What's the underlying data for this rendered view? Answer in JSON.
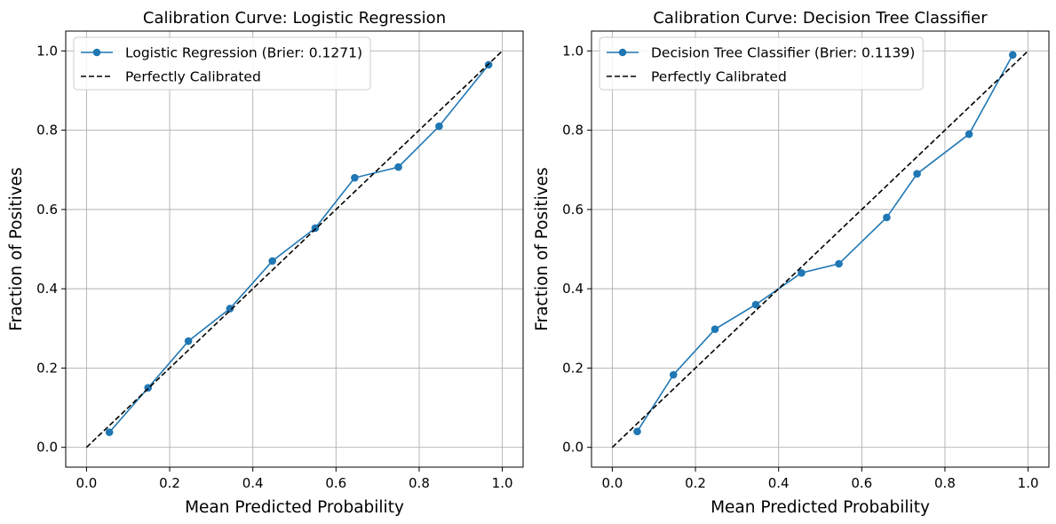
{
  "chart_data": [
    {
      "type": "line",
      "title": "Calibration Curve: Logistic Regression",
      "xlabel": "Mean Predicted Probability",
      "ylabel": "Fraction of Positives",
      "xlim": [
        -0.05,
        1.05
      ],
      "ylim": [
        -0.05,
        1.05
      ],
      "xticks": [
        "0.0",
        "0.2",
        "0.4",
        "0.6",
        "0.8",
        "1.0"
      ],
      "yticks": [
        "0.0",
        "0.2",
        "0.4",
        "0.6",
        "0.8",
        "1.0"
      ],
      "grid": true,
      "legend_position": "top-left",
      "series": [
        {
          "name": "Logistic Regression (Brier: 0.1271)",
          "color": "#1f77b4",
          "style": "solid-with-markers",
          "x": [
            0.055,
            0.148,
            0.245,
            0.345,
            0.447,
            0.55,
            0.645,
            0.75,
            0.848,
            0.967
          ],
          "y": [
            0.038,
            0.15,
            0.268,
            0.35,
            0.47,
            0.553,
            0.68,
            0.707,
            0.81,
            0.965
          ]
        },
        {
          "name": "Perfectly Calibrated",
          "color": "#000000",
          "style": "dashed",
          "x": [
            0,
            1
          ],
          "y": [
            0,
            1
          ]
        }
      ]
    },
    {
      "type": "line",
      "title": "Calibration Curve: Decision Tree Classifier",
      "xlabel": "Mean Predicted Probability",
      "ylabel": "Fraction of Positives",
      "xlim": [
        -0.05,
        1.05
      ],
      "ylim": [
        -0.05,
        1.05
      ],
      "xticks": [
        "0.0",
        "0.2",
        "0.4",
        "0.6",
        "0.8",
        "1.0"
      ],
      "yticks": [
        "0.0",
        "0.2",
        "0.4",
        "0.6",
        "0.8",
        "1.0"
      ],
      "grid": true,
      "legend_position": "top-left",
      "series": [
        {
          "name": "Decision Tree Classifier (Brier: 0.1139)",
          "color": "#1f77b4",
          "style": "solid-with-markers",
          "x": [
            0.06,
            0.147,
            0.247,
            0.345,
            0.455,
            0.545,
            0.66,
            0.733,
            0.858,
            0.963
          ],
          "y": [
            0.04,
            0.183,
            0.298,
            0.36,
            0.44,
            0.463,
            0.58,
            0.69,
            0.79,
            0.99
          ]
        },
        {
          "name": "Perfectly Calibrated",
          "color": "#000000",
          "style": "dashed",
          "x": [
            0,
            1
          ],
          "y": [
            0,
            1
          ]
        }
      ]
    }
  ]
}
